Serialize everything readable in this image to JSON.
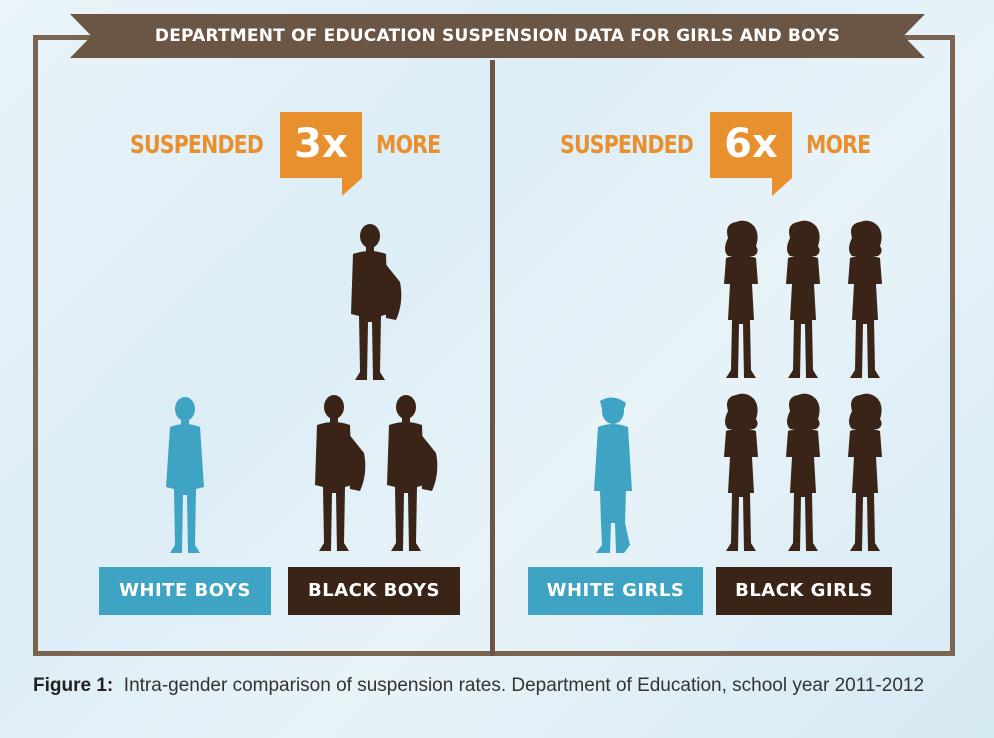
{
  "banner": {
    "title": "DEPARTMENT OF EDUCATION SUSPENSION DATA FOR GIRLS AND BOYS"
  },
  "boys_panel": {
    "prefix": "SUSPENDED",
    "multiplier": "3x",
    "suffix": "MORE",
    "white_label": "WHITE BOYS",
    "black_label": "BLACK BOYS",
    "white_count": 1,
    "black_count": 3
  },
  "girls_panel": {
    "prefix": "SUSPENDED",
    "multiplier": "6x",
    "suffix": "MORE",
    "white_label": "WHITE GIRLS",
    "black_label": "BLACK GIRLS",
    "white_count": 1,
    "black_count": 6
  },
  "colors": {
    "white_figure": "#3fa3c4",
    "black_figure": "#3a2418",
    "accent": "#e8902e",
    "frame": "#6b5646"
  },
  "caption": {
    "figure_label": "Figure 1:",
    "text": "Intra-gender comparison of suspension rates. Department of Education, school year 2011-2012"
  }
}
